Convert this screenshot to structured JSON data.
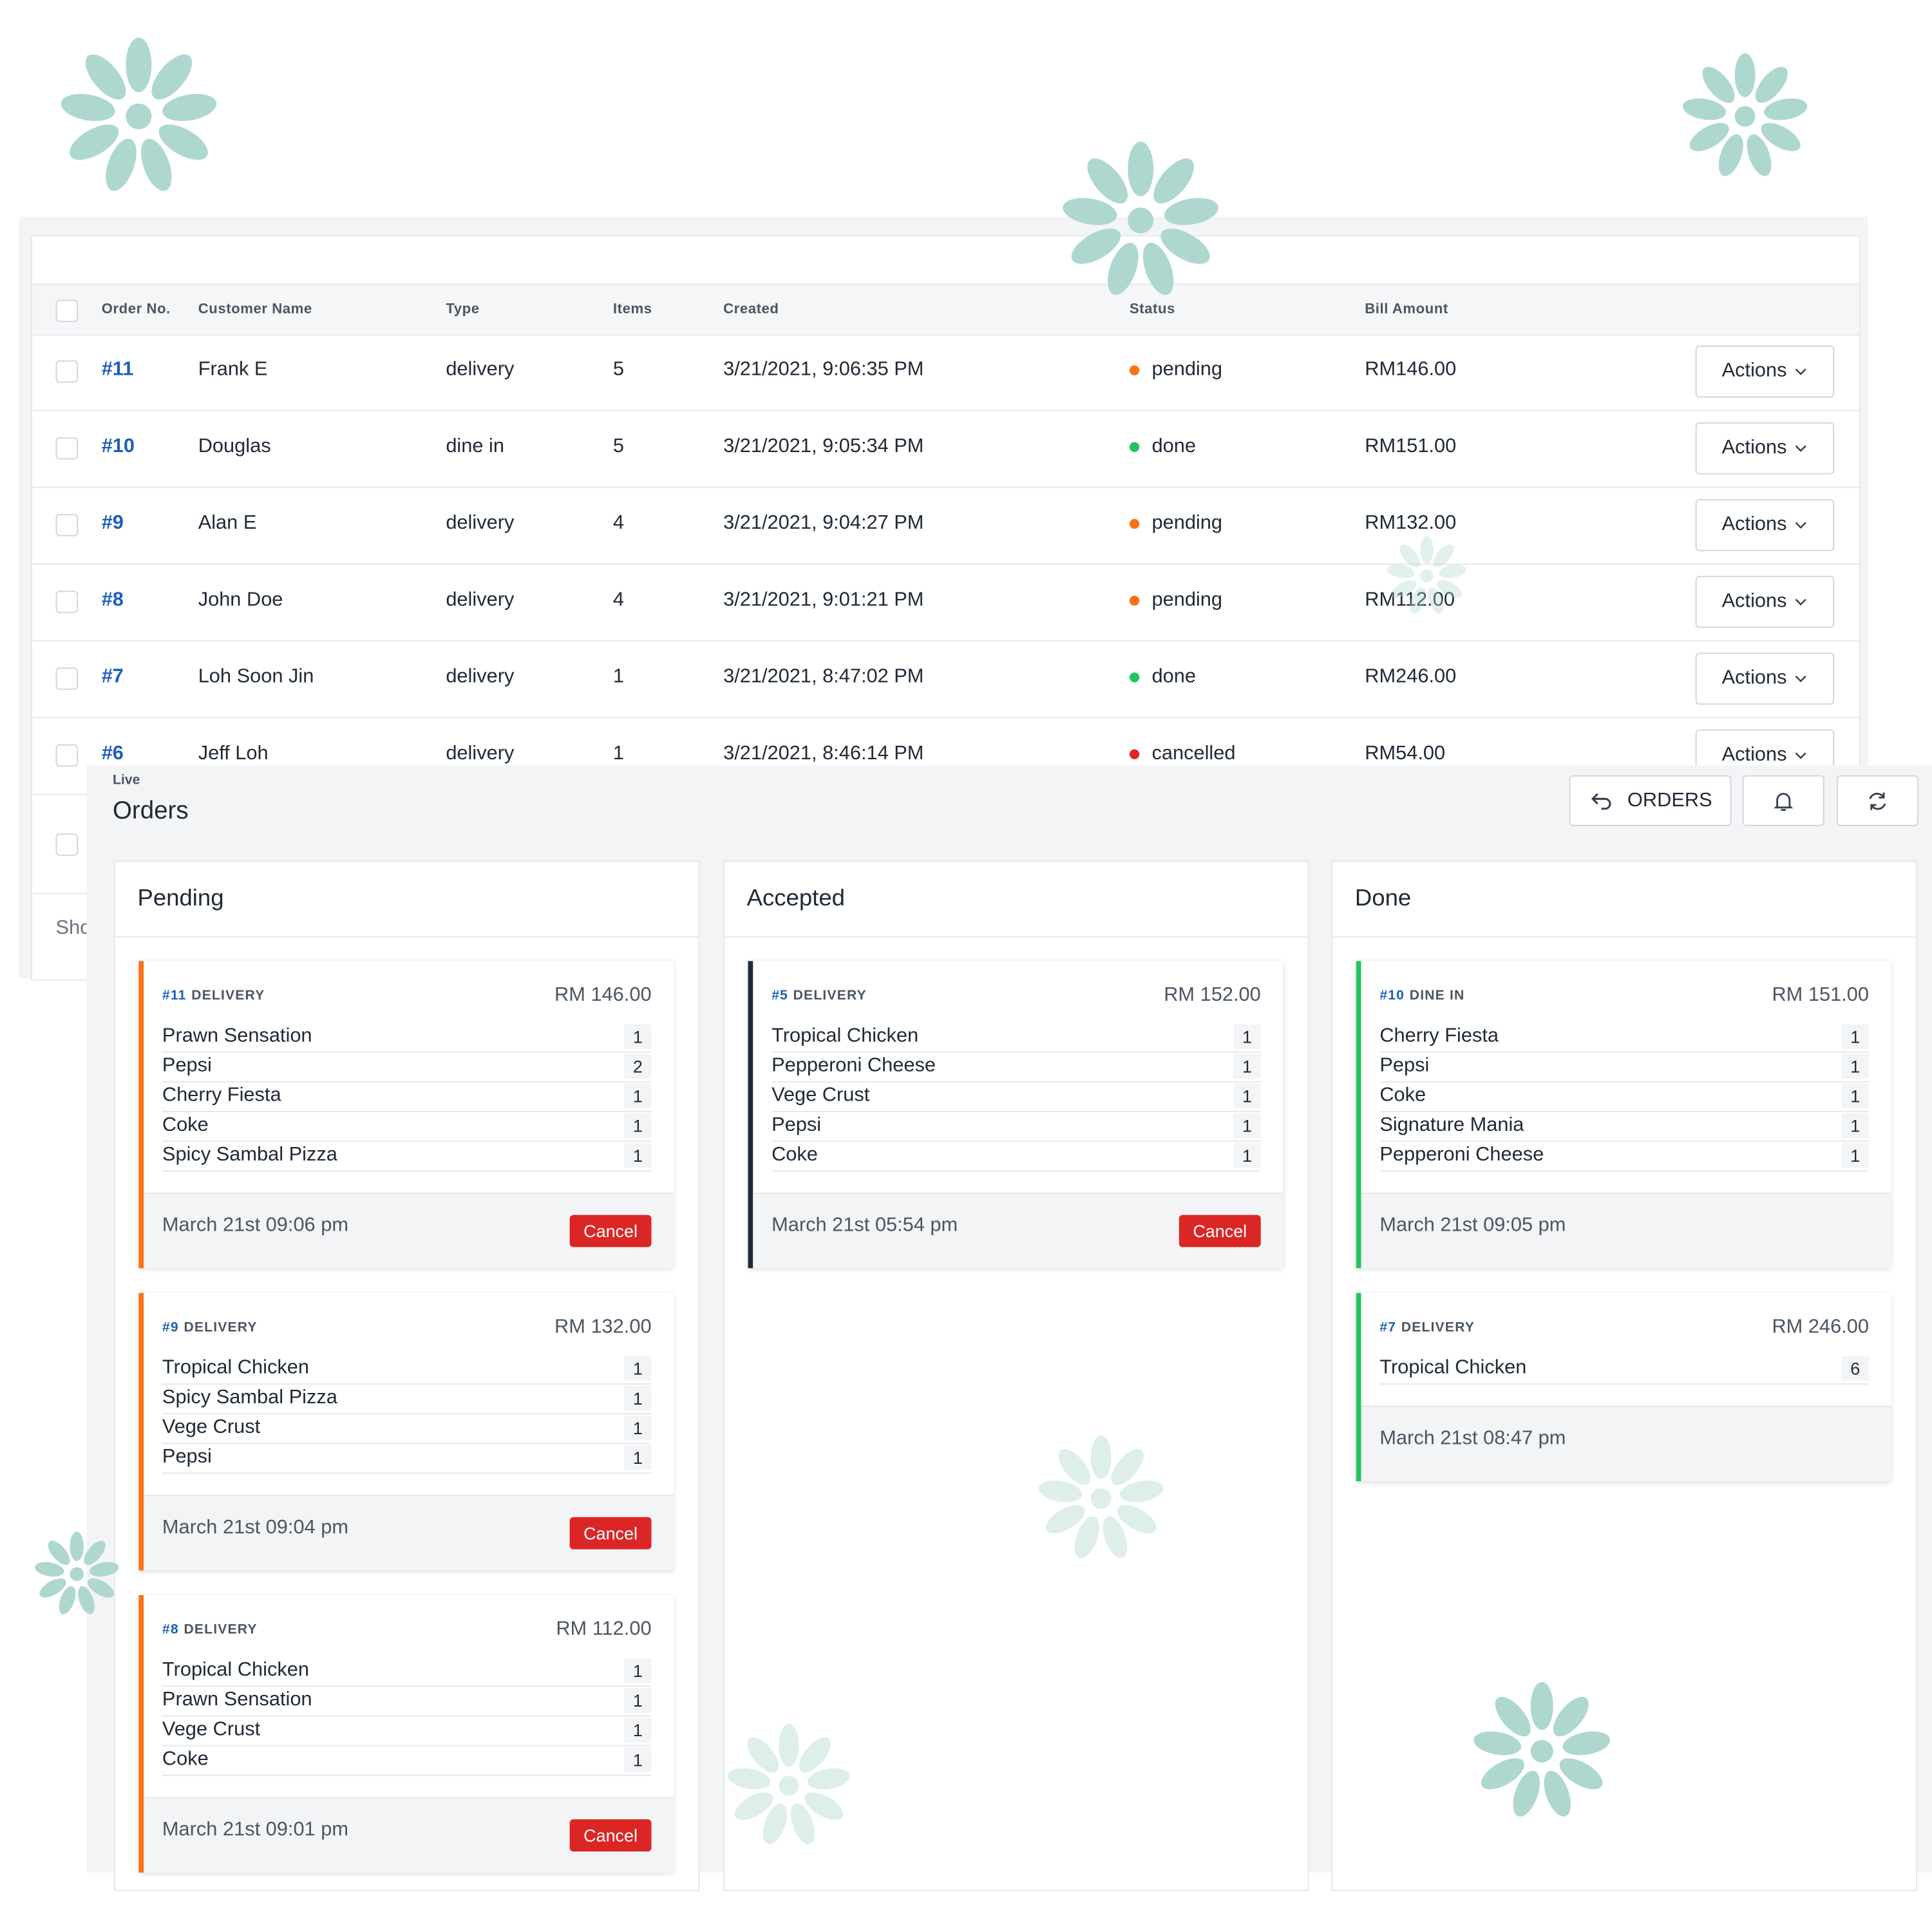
{
  "table": {
    "headers": [
      "Order No.",
      "Customer Name",
      "Type",
      "Items",
      "Created",
      "Status",
      "Bill Amount"
    ],
    "action_label": "Actions",
    "rows": [
      {
        "order": "#11",
        "name": "Frank E",
        "type": "delivery",
        "items": 5,
        "created": "3/21/2021, 9:06:35 PM",
        "status": "pending",
        "status_color": "#f97316",
        "amount": "RM146.00"
      },
      {
        "order": "#10",
        "name": "Douglas",
        "type": "dine in",
        "items": 5,
        "created": "3/21/2021, 9:05:34 PM",
        "status": "done",
        "status_color": "#22c55e",
        "amount": "RM151.00"
      },
      {
        "order": "#9",
        "name": "Alan E",
        "type": "delivery",
        "items": 4,
        "created": "3/21/2021, 9:04:27 PM",
        "status": "pending",
        "status_color": "#f97316",
        "amount": "RM132.00"
      },
      {
        "order": "#8",
        "name": "John Doe",
        "type": "delivery",
        "items": 4,
        "created": "3/21/2021, 9:01:21 PM",
        "status": "pending",
        "status_color": "#f97316",
        "amount": "RM112.00"
      },
      {
        "order": "#7",
        "name": "Loh Soon Jin",
        "type": "delivery",
        "items": 1,
        "created": "3/21/2021, 8:47:02 PM",
        "status": "done",
        "status_color": "#22c55e",
        "amount": "RM246.00"
      },
      {
        "order": "#6",
        "name": "Jeff Loh",
        "type": "delivery",
        "items": 1,
        "created": "3/21/2021, 8:46:14 PM",
        "status": "cancelled",
        "status_color": "#dc2626",
        "amount": "RM54.00"
      }
    ],
    "footer": "Sho"
  },
  "board": {
    "label": "Live",
    "title": "Orders",
    "orders_button": "ORDERS",
    "cancel_label": "Cancel",
    "columns": [
      {
        "title": "Pending",
        "accent": "#f97316",
        "cancellable": true,
        "cards": [
          {
            "id": "#11",
            "type": "DELIVERY",
            "total": "RM 146.00",
            "time": "March 21st 09:06 pm",
            "items": [
              {
                "name": "Prawn Sensation",
                "qty": 1
              },
              {
                "name": "Pepsi",
                "qty": 2
              },
              {
                "name": "Cherry Fiesta",
                "qty": 1
              },
              {
                "name": "Coke",
                "qty": 1
              },
              {
                "name": "Spicy Sambal Pizza",
                "qty": 1
              }
            ]
          },
          {
            "id": "#9",
            "type": "DELIVERY",
            "total": "RM 132.00",
            "time": "March 21st 09:04 pm",
            "items": [
              {
                "name": "Tropical Chicken",
                "qty": 1
              },
              {
                "name": "Spicy Sambal Pizza",
                "qty": 1
              },
              {
                "name": "Vege Crust",
                "qty": 1
              },
              {
                "name": "Pepsi",
                "qty": 1
              }
            ]
          },
          {
            "id": "#8",
            "type": "DELIVERY",
            "total": "RM 112.00",
            "time": "March 21st 09:01 pm",
            "items": [
              {
                "name": "Tropical Chicken",
                "qty": 1
              },
              {
                "name": "Prawn Sensation",
                "qty": 1
              },
              {
                "name": "Vege Crust",
                "qty": 1
              },
              {
                "name": "Coke",
                "qty": 1
              }
            ]
          }
        ]
      },
      {
        "title": "Accepted",
        "accent": "#1e293b",
        "cancellable": true,
        "cards": [
          {
            "id": "#5",
            "type": "DELIVERY",
            "total": "RM 152.00",
            "time": "March 21st 05:54 pm",
            "items": [
              {
                "name": "Tropical Chicken",
                "qty": 1
              },
              {
                "name": "Pepperoni Cheese",
                "qty": 1
              },
              {
                "name": "Vege Crust",
                "qty": 1
              },
              {
                "name": "Pepsi",
                "qty": 1
              },
              {
                "name": "Coke",
                "qty": 1
              }
            ]
          }
        ]
      },
      {
        "title": "Done",
        "accent": "#22c55e",
        "cancellable": false,
        "cards": [
          {
            "id": "#10",
            "type": "DINE IN",
            "total": "RM 151.00",
            "time": "March 21st 09:05 pm",
            "items": [
              {
                "name": "Cherry Fiesta",
                "qty": 1
              },
              {
                "name": "Pepsi",
                "qty": 1
              },
              {
                "name": "Coke",
                "qty": 1
              },
              {
                "name": "Signature Mania",
                "qty": 1
              },
              {
                "name": "Pepperoni Cheese",
                "qty": 1
              }
            ]
          },
          {
            "id": "#7",
            "type": "DELIVERY",
            "total": "RM 246.00",
            "time": "March 21st 08:47 pm",
            "items": [
              {
                "name": "Tropical Chicken",
                "qty": 6
              }
            ]
          }
        ]
      }
    ]
  }
}
